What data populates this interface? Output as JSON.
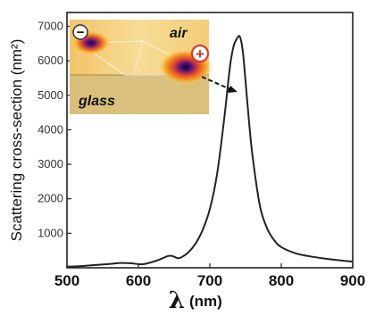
{
  "chart_data": {
    "type": "line",
    "xlabel_symbol": "λ",
    "xlabel_unit": "(nm)",
    "ylabel": "Scattering cross-section (nm²)",
    "xlim": [
      500,
      900
    ],
    "ylim": [
      0,
      7400
    ],
    "x_ticks": [
      500,
      600,
      700,
      800,
      900
    ],
    "y_ticks": [
      1000,
      2000,
      3000,
      4000,
      5000,
      6000,
      7000
    ],
    "grid": false,
    "series": [
      {
        "x": [
          500,
          520,
          540,
          560,
          575,
          590,
          605,
          620,
          632,
          640,
          645,
          650,
          655,
          660,
          670,
          680,
          690,
          700,
          710,
          720,
          728,
          733,
          738,
          742,
          746,
          750,
          755,
          760,
          770,
          780,
          790,
          800,
          820,
          840,
          860,
          880,
          900
        ],
        "y": [
          30,
          50,
          80,
          110,
          140,
          130,
          100,
          170,
          260,
          330,
          350,
          320,
          280,
          300,
          450,
          700,
          1100,
          1700,
          2700,
          4300,
          5800,
          6400,
          6650,
          6700,
          6300,
          5400,
          4200,
          3200,
          1800,
          1150,
          800,
          600,
          420,
          330,
          270,
          220,
          180
        ],
        "color": "#222222"
      }
    ],
    "inset": {
      "label_top": "air",
      "label_bottom": "glass",
      "minus_sign": "−",
      "plus_sign": "+"
    }
  }
}
